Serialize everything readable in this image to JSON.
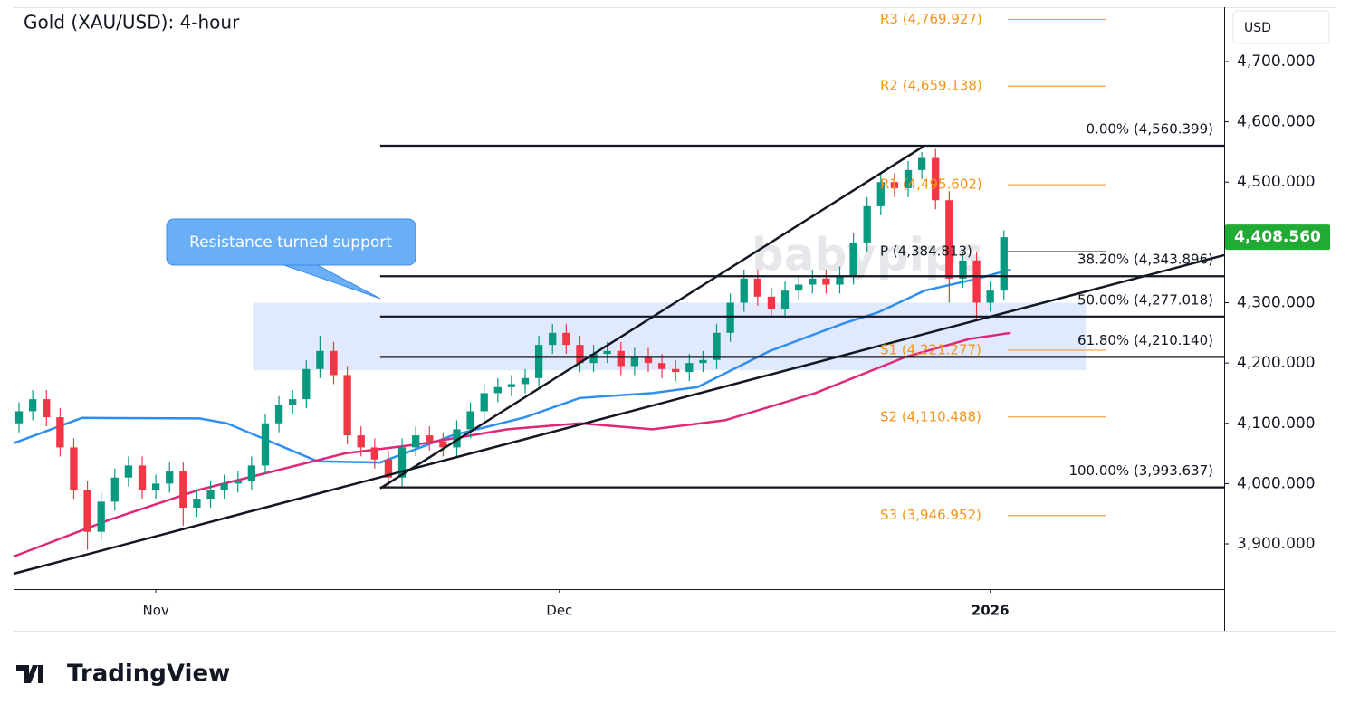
{
  "chart_data": {
    "type": "candlestick",
    "title": "Gold (XAU/USD): 4-hour",
    "currency": "USD",
    "watermark": "babypips",
    "footer": "TradingView",
    "up_color": "#089981",
    "down_color": "#f23645",
    "xlim": [
      -10.4,
      78.1
    ],
    "xticks": [
      {
        "value": 0,
        "label": "Nov"
      },
      {
        "value": 29.5,
        "label": "Dec"
      },
      {
        "value": 61,
        "label": "2026"
      }
    ],
    "ylim": [
      3825,
      4790
    ],
    "yticks": [
      {
        "value": 3900,
        "label": "3,900.000"
      },
      {
        "value": 4000,
        "label": "4,000.000"
      },
      {
        "value": 4100,
        "label": "4,100.000"
      },
      {
        "value": 4200,
        "label": "4,200.000"
      },
      {
        "value": 4300,
        "label": "4,300.000"
      },
      {
        "value": 4400,
        "label": "4,400.000"
      },
      {
        "value": 4500,
        "label": "4,500.000"
      },
      {
        "value": 4600,
        "label": "4,600.000"
      },
      {
        "value": 4700,
        "label": "4,700.000"
      }
    ],
    "last_price": {
      "value": 4408.56,
      "label": "4,408.560",
      "color": "#22ab34"
    },
    "x": [
      -10,
      -9,
      -8,
      -7,
      -6,
      -5,
      -4,
      -3,
      -2,
      -1,
      0,
      1,
      2,
      3,
      4,
      5,
      6,
      7,
      8,
      9,
      10,
      11,
      12,
      13,
      14,
      15,
      16,
      17,
      18,
      19,
      20,
      21,
      22,
      23,
      24,
      25,
      26,
      27,
      28,
      29,
      30,
      31,
      32,
      33,
      34,
      35,
      36,
      37,
      38,
      39,
      40,
      41,
      42,
      43,
      44,
      45,
      46,
      47,
      48,
      49,
      50,
      51,
      52,
      53,
      54,
      55,
      56,
      57,
      58,
      59,
      60,
      61,
      62
    ],
    "open": [
      4100,
      4120,
      4140,
      4110,
      4060,
      3990,
      3920,
      3970,
      4010,
      4030,
      3990,
      4000,
      4020,
      3960,
      3975,
      3990,
      4000,
      4005,
      4030,
      4100,
      4130,
      4140,
      4190,
      4220,
      4180,
      4080,
      4060,
      4040,
      4010,
      4060,
      4080,
      4070,
      4060,
      4090,
      4120,
      4150,
      4160,
      4165,
      4175,
      4230,
      4250,
      4230,
      4200,
      4215,
      4220,
      4195,
      4210,
      4200,
      4190,
      4185,
      4200,
      4205,
      4250,
      4300,
      4340,
      4310,
      4290,
      4320,
      4330,
      4340,
      4330,
      4345,
      4400,
      4460,
      4500,
      4490,
      4520,
      4540,
      4470,
      4340,
      4370,
      4300,
      4320
    ],
    "high": [
      4135,
      4155,
      4155,
      4125,
      4075,
      4005,
      3985,
      4025,
      4045,
      4045,
      4015,
      4035,
      4035,
      3990,
      4005,
      4015,
      4020,
      4045,
      4115,
      4145,
      4155,
      4205,
      4245,
      4235,
      4195,
      4095,
      4075,
      4055,
      4075,
      4095,
      4095,
      4085,
      4105,
      4135,
      4165,
      4175,
      4180,
      4190,
      4245,
      4265,
      4265,
      4245,
      4230,
      4235,
      4235,
      4225,
      4225,
      4215,
      4205,
      4215,
      4220,
      4265,
      4315,
      4355,
      4355,
      4325,
      4335,
      4345,
      4355,
      4355,
      4360,
      4415,
      4475,
      4515,
      4515,
      4535,
      4550,
      4555,
      4485,
      4385,
      4385,
      4335,
      4420
    ],
    "low": [
      4085,
      4105,
      4095,
      4045,
      3975,
      3890,
      3905,
      3955,
      3995,
      3975,
      3975,
      3985,
      3930,
      3945,
      3960,
      3975,
      3985,
      3990,
      4015,
      4085,
      4115,
      4125,
      4175,
      4165,
      4065,
      4045,
      4025,
      3995,
      3995,
      4045,
      4055,
      4045,
      4045,
      4075,
      4105,
      4135,
      4145,
      4150,
      4160,
      4215,
      4215,
      4185,
      4185,
      4200,
      4180,
      4180,
      4185,
      4175,
      4170,
      4170,
      4185,
      4190,
      4235,
      4285,
      4295,
      4275,
      4275,
      4305,
      4315,
      4315,
      4315,
      4330,
      4385,
      4445,
      4475,
      4475,
      4505,
      4455,
      4300,
      4325,
      4270,
      4285,
      4305
    ],
    "close": [
      4120,
      4140,
      4110,
      4060,
      3990,
      3920,
      3970,
      4010,
      4030,
      3990,
      4000,
      4020,
      3960,
      3975,
      3990,
      4000,
      4005,
      4030,
      4100,
      4130,
      4140,
      4190,
      4220,
      4180,
      4080,
      4060,
      4040,
      4010,
      4060,
      4080,
      4070,
      4060,
      4090,
      4120,
      4150,
      4160,
      4165,
      4175,
      4230,
      4250,
      4230,
      4200,
      4215,
      4220,
      4195,
      4210,
      4200,
      4190,
      4185,
      4200,
      4205,
      4250,
      4300,
      4340,
      4310,
      4290,
      4320,
      4330,
      4340,
      4330,
      4345,
      4400,
      4460,
      4500,
      4490,
      4520,
      4540,
      4470,
      4340,
      4370,
      4300,
      4320,
      4408.56
    ],
    "lines": [
      {
        "color": "#2f8ff0",
        "x": [
          -10.4,
          -5.4,
          3.2,
          5.2,
          11.8,
          16.4,
          21.7,
          27.0,
          31.0,
          36.3,
          39.6,
          44.9,
          50.2,
          52.8,
          56.2,
          60.1,
          62.5
        ],
        "values": [
          4067,
          4109,
          4108,
          4100,
          4037,
          4035,
          4080,
          4110,
          4142,
          4150,
          4160,
          4220,
          4265,
          4284,
          4320,
          4340,
          4355
        ]
      },
      {
        "color": "#e0287a",
        "x": [
          -10.4,
          -3.4,
          3.2,
          8.5,
          13.8,
          19.1,
          25.7,
          31.0,
          36.3,
          41.6,
          48.2,
          54.8,
          59.5,
          62.5
        ],
        "values": [
          3879,
          3940,
          3990,
          4020,
          4050,
          4065,
          4090,
          4100,
          4090,
          4105,
          4150,
          4210,
          4240,
          4250
        ]
      }
    ],
    "trendlines": [
      {
        "color": "#131722",
        "x": [
          -10.4,
          78.1
        ],
        "values": [
          3850.5,
          4379
        ]
      },
      {
        "color": "#131722",
        "x": [
          16.4,
          56.1
        ],
        "values": [
          3992,
          4559
        ]
      }
    ],
    "zone": {
      "label": "Resistance turned support",
      "color": "#dce5fb",
      "xlim": [
        7.1,
        68
      ],
      "ylim": [
        4188,
        4300
      ]
    },
    "fib_levels": [
      {
        "label": "0.00% (4,560.399)",
        "value": 4560.399
      },
      {
        "label": "38.20% (4,343.896)",
        "value": 4343.896
      },
      {
        "label": "50.00% (4,277.018)",
        "value": 4277.018
      },
      {
        "label": "61.80% (4,210.140)",
        "value": 4210.14
      },
      {
        "label": "100.00% (3,993.637)",
        "value": 3993.637
      }
    ],
    "pivot_levels": [
      {
        "label": "R3 (4,769.927)",
        "value": 4769.927,
        "color": "#f7931a"
      },
      {
        "label": "R2 (4,659.138)",
        "value": 4659.138,
        "color": "#f7931a"
      },
      {
        "label": "R1 (4,495.602)",
        "value": 4495.602,
        "color": "#f7931a"
      },
      {
        "label": "P (4,384.813)",
        "value": 4384.813,
        "color": "#131722"
      },
      {
        "label": "S1 (4,221.277)",
        "value": 4221.277,
        "color": "#f7931a"
      },
      {
        "label": "S2 (4,110.488)",
        "value": 4110.488,
        "color": "#f7931a"
      },
      {
        "label": "S3 (3,946.952)",
        "value": 3946.952,
        "color": "#f7931a"
      }
    ]
  }
}
